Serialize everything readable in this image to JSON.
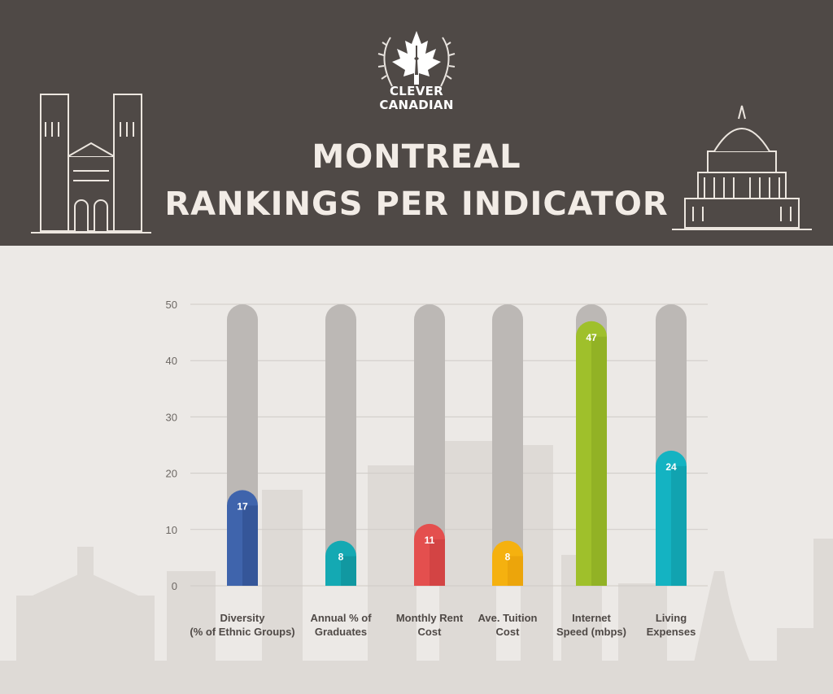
{
  "header": {
    "brand_line1": "CLEVER",
    "brand_line2": "CANADIAN",
    "title_line1": "MONTREAL",
    "title_line2": "RANKINGS PER INDICATOR",
    "header_color": "#4f4946"
  },
  "icons": [
    "maple-leaf-icon",
    "laurel-wreath-icon",
    "cn-tower-icon",
    "cathedral-illustration",
    "parliament-dome-illustration"
  ],
  "colors": {
    "track": "#bcb8b5",
    "series": [
      "#3f64ac",
      "#14a9b3",
      "#e44f4e",
      "#f5b10f",
      "#9fc02b",
      "#14b3c2"
    ],
    "series_dark": [
      "#2d4a8a",
      "#0f8a92",
      "#c43c3c",
      "#e39a0a",
      "#86a521",
      "#0f96a3"
    ]
  },
  "chart_data": {
    "type": "bar",
    "categories": [
      [
        "Diversity",
        "(% of Ethnic Groups)"
      ],
      [
        "Annual % of",
        "Graduates"
      ],
      [
        "Monthly Rent",
        "Cost"
      ],
      [
        "Ave. Tuition",
        "Cost"
      ],
      [
        "Internet",
        "Speed (mbps)"
      ],
      [
        "Living",
        "Expenses"
      ]
    ],
    "values": [
      17,
      8,
      11,
      8,
      47,
      24
    ],
    "ylim": [
      0,
      50
    ],
    "yticks": [
      0,
      10,
      20,
      30,
      40,
      50
    ],
    "grid": true,
    "title": "MONTREAL RANKINGS PER INDICATOR"
  }
}
